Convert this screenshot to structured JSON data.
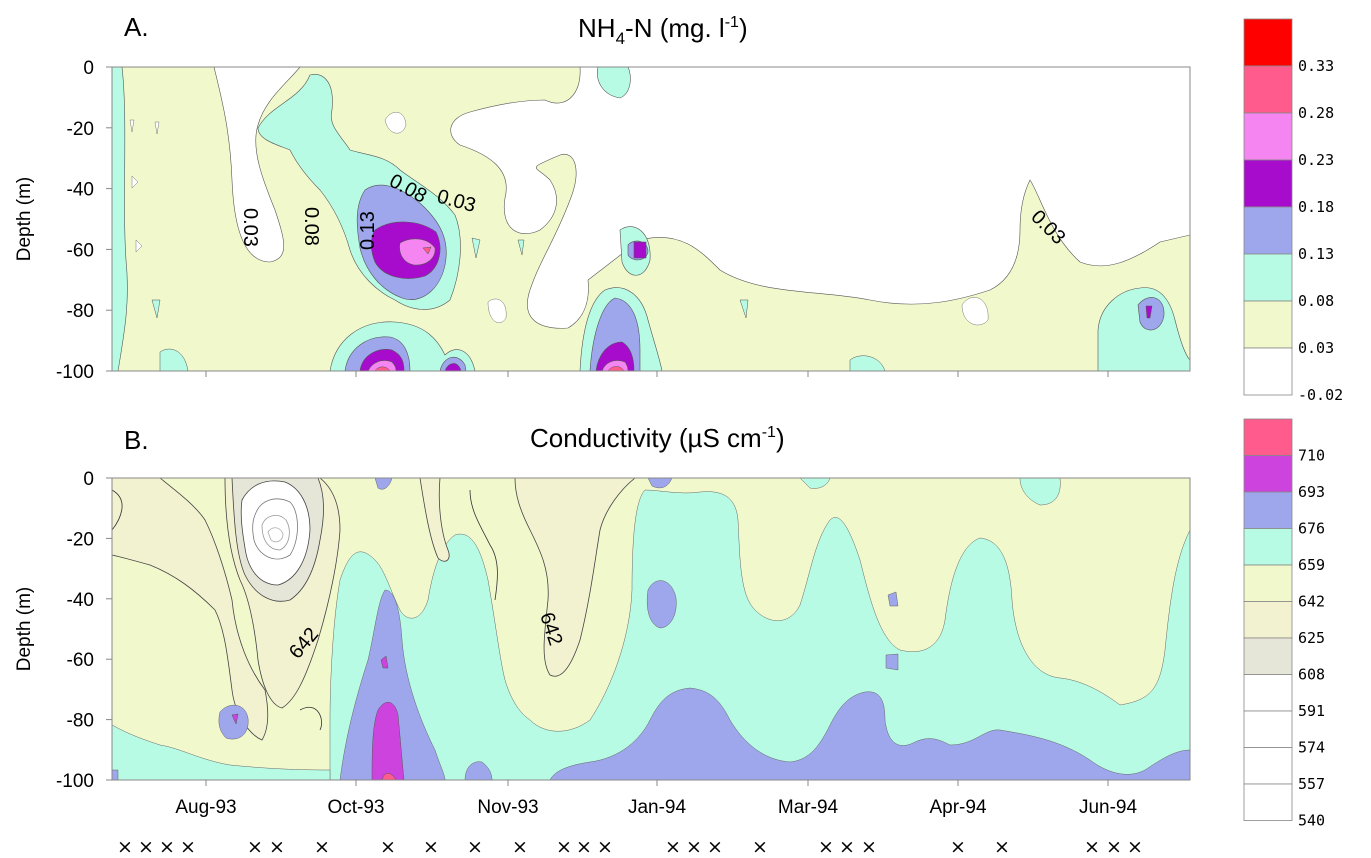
{
  "colors": {
    "white": "#ffffff",
    "yellow": "#f0f8cc",
    "aqua": "#b8fbe4",
    "blue": "#9ea6ec",
    "purple": "#a70ccc",
    "pinkviolet": "#f485f1",
    "pink": "#ff5b8c",
    "red": "#ff0000",
    "magenta": "#cc44dd",
    "beige": "#f2f2d0",
    "grey": "#e6e6d8"
  },
  "chart_data": [
    {
      "type": "heatmap",
      "panel": "A.",
      "title_main": "NH",
      "title_sub": "4",
      "title_rest": "-N  (mg. l",
      "title_sup": "-1",
      "title_end": ")",
      "ylabel": "Depth (m)",
      "ylim": [
        -100,
        0
      ],
      "yticks": [
        "0",
        "-20",
        "-40",
        "-60",
        "-80",
        "-100"
      ],
      "colorbar": [
        "0.33",
        "0.28",
        "0.23",
        "0.18",
        "0.13",
        "0.08",
        "0.03",
        "-0.02"
      ],
      "contour_labels": [
        "0.03",
        "0.08",
        "0.13",
        "0.08",
        "0.03",
        "0.03"
      ]
    },
    {
      "type": "heatmap",
      "panel": "B.",
      "title_main": "Conductivity (µS cm",
      "title_sup": "-1",
      "title_end": ")",
      "ylabel": "Depth (m)",
      "ylim": [
        -100,
        0
      ],
      "yticks": [
        "0",
        "-20",
        "-40",
        "-60",
        "-80",
        "-100"
      ],
      "xticks": [
        "Aug-93",
        "Oct-93",
        "Nov-93",
        "Jan-94",
        "Mar-94",
        "Apr-94",
        "Jun-94"
      ],
      "colorbar": [
        "710",
        "693",
        "676",
        "659",
        "642",
        "625",
        "608",
        "591",
        "574",
        "557",
        "540"
      ],
      "contour_labels": [
        "642",
        "642"
      ]
    }
  ],
  "sample_marks": [
    "×",
    "×",
    "×",
    "×",
    "×",
    "×",
    "×",
    "×",
    "×",
    "×",
    "×",
    "×",
    "×",
    "×",
    "×",
    "×",
    "×",
    "×",
    "×",
    "×",
    "×",
    "×",
    "×",
    "×",
    "×",
    "×"
  ]
}
